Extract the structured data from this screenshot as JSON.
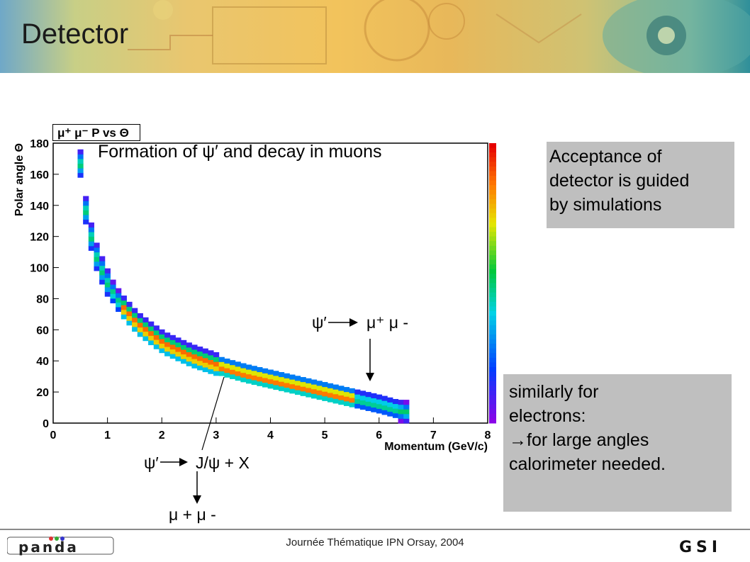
{
  "slide": {
    "title": "Detector",
    "footer": "Journée Thématique IPN Orsay, 2004"
  },
  "plot": {
    "title_box": "μ⁺ μ⁻ P vs Θ",
    "formation_text": "Formation of ψ′ and decay in muons",
    "annotations": {
      "decay1": "ψ′",
      "decay1_products": "μ⁺ μ -",
      "decay2": "ψ′",
      "decay2_products": "J/ψ + X",
      "decay2_muons": "μ + μ -"
    }
  },
  "callouts": {
    "acceptance": [
      "Acceptance of",
      "detector is guided",
      "by simulations"
    ],
    "electrons": [
      "similarly for",
      "electrons:",
      "→for large angles",
      "calorimeter needed."
    ]
  },
  "logos": {
    "left": "panda",
    "right": "GSI"
  },
  "chart_data": {
    "type": "heatmap",
    "title": "μ⁺ μ⁻ P vs Θ",
    "xlabel": "Momentum (GeV/c)",
    "ylabel": "Polar angle Θ",
    "xlim": [
      0,
      8
    ],
    "ylim": [
      0,
      180
    ],
    "x_ticks": [
      "0",
      "1",
      "2",
      "3",
      "4",
      "5",
      "6",
      "7",
      "8"
    ],
    "y_ticks": [
      "0",
      "20",
      "40",
      "60",
      "80",
      "100",
      "120",
      "140",
      "160",
      "180"
    ],
    "colorbar_ticks": [
      "20",
      "30",
      "40",
      "50",
      "60"
    ],
    "band": [
      {
        "p": 0.45,
        "theta": 165
      },
      {
        "p": 0.5,
        "theta": 150
      },
      {
        "p": 0.55,
        "theta": 135
      },
      {
        "p": 0.65,
        "theta": 118
      },
      {
        "p": 0.75,
        "theta": 105
      },
      {
        "p": 0.9,
        "theta": 92
      },
      {
        "p": 1.0,
        "theta": 85
      },
      {
        "p": 1.2,
        "theta": 74
      },
      {
        "p": 1.5,
        "theta": 62
      },
      {
        "p": 1.8,
        "theta": 54
      },
      {
        "p": 2.0,
        "theta": 49
      },
      {
        "p": 2.5,
        "theta": 41
      },
      {
        "p": 3.0,
        "theta": 35
      },
      {
        "p": 3.5,
        "theta": 30
      },
      {
        "p": 4.0,
        "theta": 26
      },
      {
        "p": 4.5,
        "theta": 22
      },
      {
        "p": 5.0,
        "theta": 18
      },
      {
        "p": 5.5,
        "theta": 14
      },
      {
        "p": 6.0,
        "theta": 10
      },
      {
        "p": 6.5,
        "theta": 5
      }
    ]
  }
}
